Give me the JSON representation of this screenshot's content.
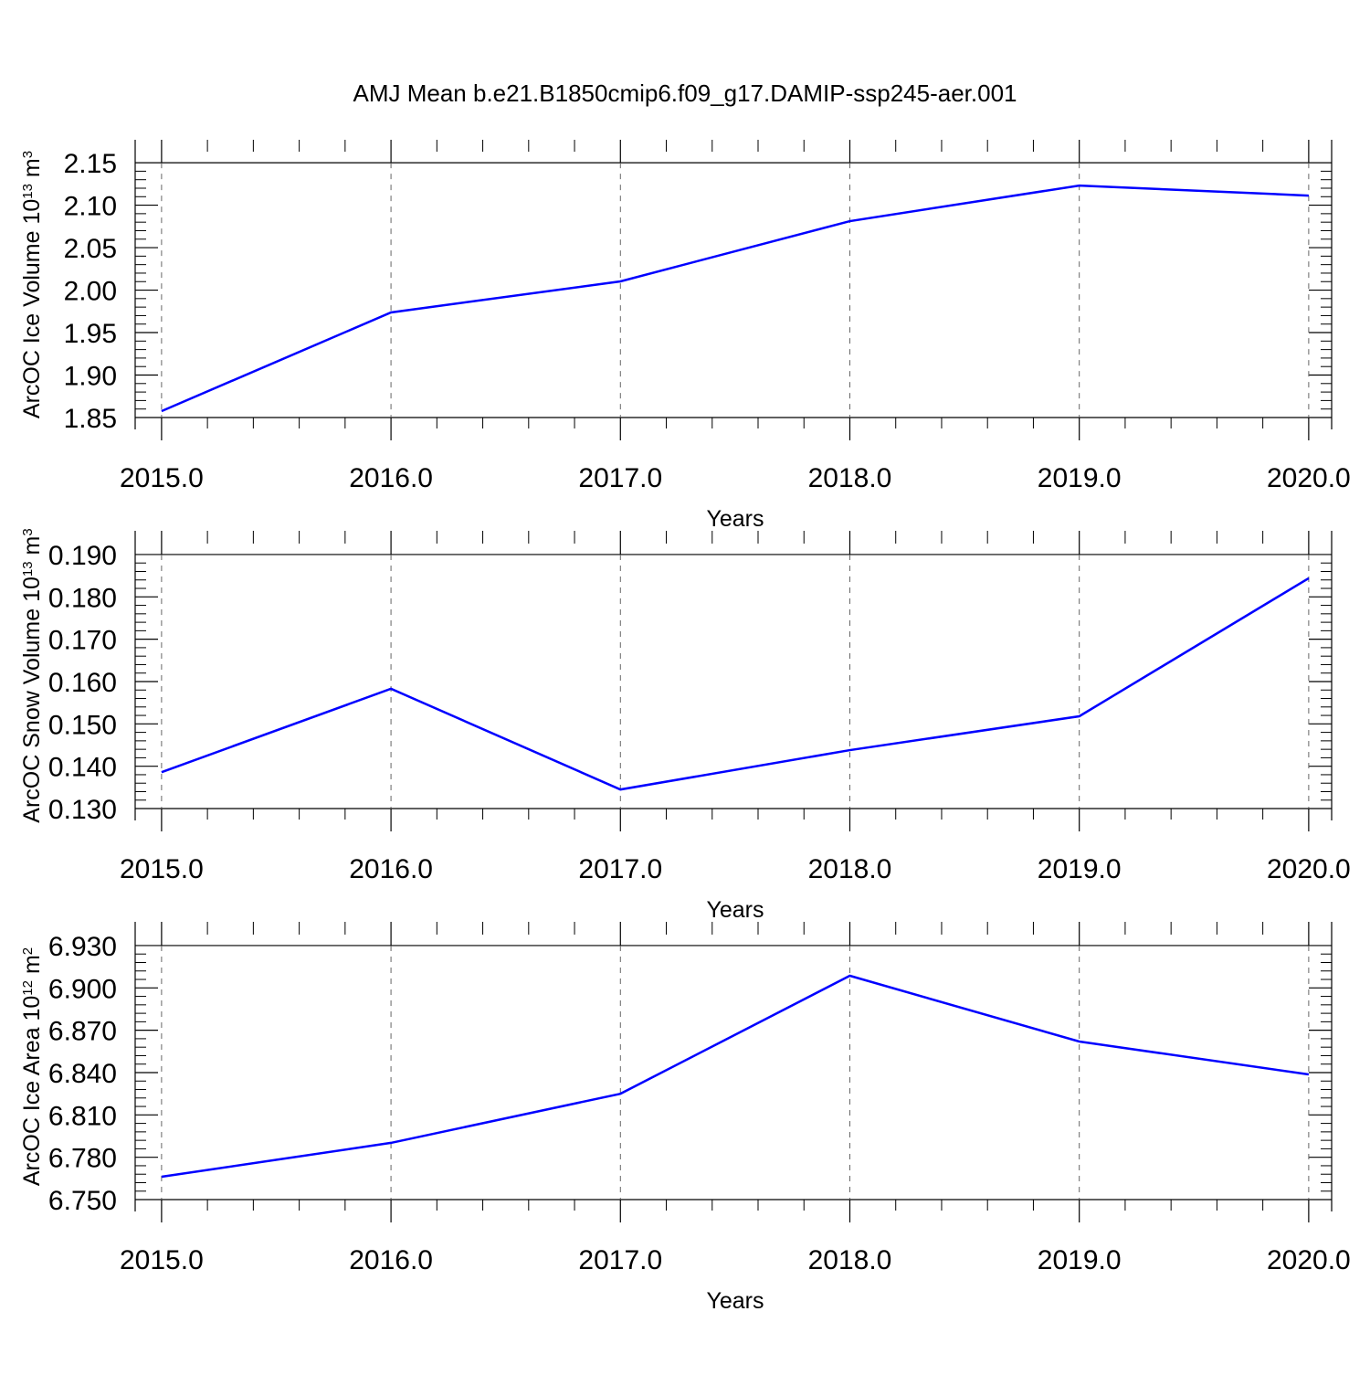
{
  "chart_data": [
    {
      "type": "line",
      "title": "AMJ Mean b.e21.B1850cmip6.f09_g17.DAMIP-ssp245-aer.001",
      "xlabel": "Years",
      "ylabel": [
        {
          "text": "ArcOC Ice Volume 10"
        },
        {
          "text": "13",
          "sup": true
        },
        {
          "text": " m"
        },
        {
          "text": "3",
          "sup": true
        }
      ],
      "x": [
        2015,
        2016,
        2017,
        2018,
        2019,
        2020
      ],
      "series": [
        {
          "color": "#0000ff",
          "values": [
            1.8575,
            1.9737,
            2.0103,
            2.0812,
            2.1231,
            2.1113
          ]
        }
      ],
      "xlim": [
        2014.885,
        2020.1
      ],
      "xticks": [
        {
          "value": 2015,
          "label": "2015.0"
        },
        {
          "value": 2016,
          "label": "2016.0"
        },
        {
          "value": 2017,
          "label": "2017.0"
        },
        {
          "value": 2018,
          "label": "2018.0"
        },
        {
          "value": 2019,
          "label": "2019.0"
        },
        {
          "value": 2020,
          "label": "2020.0"
        }
      ],
      "ylim": [
        1.836,
        2.177
      ],
      "yticks": [
        1.85,
        {
          "value": 1.9,
          "label": "1.90"
        },
        1.95,
        {
          "value": 2,
          "label": "2.00"
        },
        2.05,
        {
          "value": 2.1,
          "label": "2.10"
        },
        2.15
      ],
      "grid": "x-dashed"
    },
    {
      "type": "line",
      "xlabel": "Years",
      "ylabel": [
        {
          "text": "ArcOC Snow Volume 10"
        },
        {
          "text": "13",
          "sup": true
        },
        {
          "text": " m"
        },
        {
          "text": "3",
          "sup": true
        }
      ],
      "x": [
        2015,
        2016,
        2017,
        2018,
        2019,
        2020
      ],
      "series": [
        {
          "color": "#0000ff",
          "values": [
            0.1386,
            0.1583,
            0.1345,
            0.1438,
            0.1518,
            0.1844
          ]
        }
      ],
      "xlim": [
        2014.885,
        2020.1
      ],
      "xticks": [
        {
          "value": 2015,
          "label": "2015.0"
        },
        {
          "value": 2016,
          "label": "2016.0"
        },
        {
          "value": 2017,
          "label": "2017.0"
        },
        {
          "value": 2018,
          "label": "2018.0"
        },
        {
          "value": 2019,
          "label": "2019.0"
        },
        {
          "value": 2020,
          "label": "2020.0"
        }
      ],
      "ylim": [
        0.1272,
        0.1956
      ],
      "yticks": [
        {
          "value": 0.13,
          "label": "0.130"
        },
        {
          "value": 0.14,
          "label": "0.140"
        },
        {
          "value": 0.15,
          "label": "0.150"
        },
        {
          "value": 0.16,
          "label": "0.160"
        },
        {
          "value": 0.17,
          "label": "0.170"
        },
        {
          "value": 0.18,
          "label": "0.180"
        },
        {
          "value": 0.19,
          "label": "0.190"
        }
      ],
      "grid": "x-dashed"
    },
    {
      "type": "line",
      "xlabel": "Years",
      "ylabel": [
        {
          "text": "ArcOC Ice Area 10"
        },
        {
          "text": "12",
          "sup": true
        },
        {
          "text": " m"
        },
        {
          "text": "2",
          "sup": true
        }
      ],
      "x": [
        2015,
        2016,
        2017,
        2018,
        2019,
        2020
      ],
      "series": [
        {
          "color": "#0000ff",
          "values": [
            6.7662,
            6.7902,
            6.825,
            6.9086,
            6.862,
            6.8387
          ]
        }
      ],
      "xlim": [
        2014.885,
        2020.1
      ],
      "xticks": [
        {
          "value": 2015,
          "label": "2015.0"
        },
        {
          "value": 2016,
          "label": "2016.0"
        },
        {
          "value": 2017,
          "label": "2017.0"
        },
        {
          "value": 2018,
          "label": "2018.0"
        },
        {
          "value": 2019,
          "label": "2019.0"
        },
        {
          "value": 2020,
          "label": "2020.0"
        }
      ],
      "ylim": [
        6.7416,
        6.9468
      ],
      "yticks": [
        {
          "value": 6.75,
          "label": "6.750"
        },
        {
          "value": 6.78,
          "label": "6.780"
        },
        {
          "value": 6.81,
          "label": "6.810"
        },
        {
          "value": 6.84,
          "label": "6.840"
        },
        {
          "value": 6.87,
          "label": "6.870"
        },
        {
          "value": 6.9,
          "label": "6.900"
        },
        {
          "value": 6.93,
          "label": "6.930"
        }
      ],
      "grid": "x-dashed"
    }
  ]
}
